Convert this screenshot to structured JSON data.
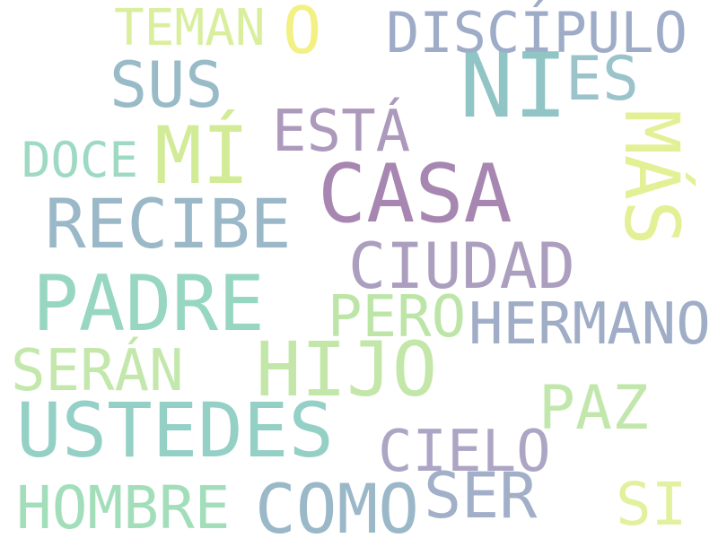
{
  "cloud": {
    "words": [
      {
        "text": "TEMAN",
        "color": "#d6ee96"
      },
      {
        "text": "O",
        "color": "#f2ef7a"
      },
      {
        "text": "DISCÍPULO",
        "color": "#97a5c4"
      },
      {
        "text": "NI",
        "color": "#88bfc1"
      },
      {
        "text": "SUS",
        "color": "#91b6c4"
      },
      {
        "text": "ES",
        "color": "#92bfc6"
      },
      {
        "text": "ESTÁ",
        "color": "#a591b7"
      },
      {
        "text": "MÍ",
        "color": "#cfea8e"
      },
      {
        "text": "DOCE",
        "color": "#96d6be"
      },
      {
        "text": "CASA",
        "color": "#a07dab"
      },
      {
        "text": "MÁS",
        "color": "#e2ef8d"
      },
      {
        "text": "RECIBE",
        "color": "#93b2c4"
      },
      {
        "text": "CIUDAD",
        "color": "#a596ba"
      },
      {
        "text": "PADRE",
        "color": "#8fd3bc"
      },
      {
        "text": "PERO",
        "color": "#b7e3a0"
      },
      {
        "text": "HERMANO",
        "color": "#99a7c2"
      },
      {
        "text": "HIJO",
        "color": "#bde6a2"
      },
      {
        "text": "SERÁN",
        "color": "#bfe6a6"
      },
      {
        "text": "PAZ",
        "color": "#bde6a6"
      },
      {
        "text": "USTEDES",
        "color": "#8bcdc2"
      },
      {
        "text": "CIELO",
        "color": "#a79ec0"
      },
      {
        "text": "SER",
        "color": "#9ba9c4"
      },
      {
        "text": "HOMBRE",
        "color": "#9cdcb6"
      },
      {
        "text": "COMO",
        "color": "#93b2c4"
      },
      {
        "text": "SI",
        "color": "#dff095"
      }
    ]
  }
}
